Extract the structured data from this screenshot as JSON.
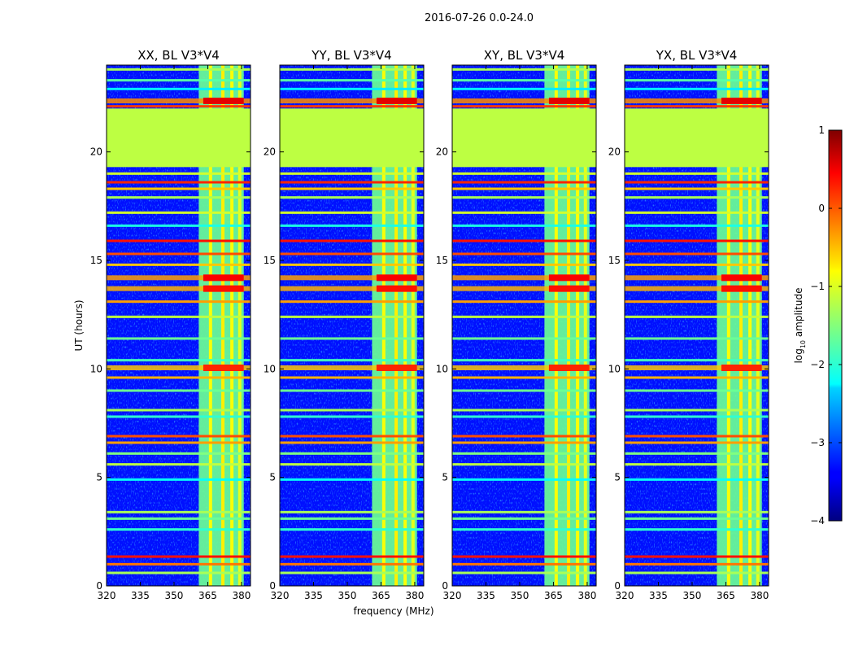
{
  "chart_data": {
    "type": "heatmap",
    "suptitle": "2016-07-26 0.0-24.0",
    "xlabel": "frequency (MHz)",
    "ylabel": "UT (hours)",
    "xlim": [
      320,
      384
    ],
    "ylim": [
      0,
      24
    ],
    "xticks": [
      320,
      335,
      350,
      365,
      380
    ],
    "yticks": [
      0,
      5,
      10,
      15,
      20
    ],
    "colorbar": {
      "label": "log10 amplitude",
      "label_main": "log",
      "label_sub": "10",
      "label_rest": " amplitude",
      "range": [
        -4,
        1
      ],
      "ticks": [
        1,
        0,
        -1,
        -2,
        -3,
        -4
      ],
      "tick_labels": [
        "1",
        "0",
        "−1",
        "−2",
        "−3",
        "−4"
      ],
      "colormap": "jet"
    },
    "panels": [
      {
        "title": "XX, BL V3*V4",
        "rfi_band_mhz": [
          361,
          381
        ]
      },
      {
        "title": "YY, BL V3*V4",
        "rfi_band_mhz": [
          361,
          381
        ]
      },
      {
        "title": "XY, BL V3*V4",
        "rfi_band_mhz": [
          361,
          381
        ]
      },
      {
        "title": "YX, BL V3*V4",
        "rfi_band_mhz": [
          361,
          381
        ]
      }
    ],
    "flagged_block_hours": [
      19.3,
      22.0
    ],
    "background_log_amplitude": -3.3,
    "flagged_log_amplitude": -1.2,
    "rfi_log_amplitude": -1.6,
    "strong_rows": [
      {
        "ut": 22.35,
        "value": 0.5,
        "band": true
      },
      {
        "ut": 14.2,
        "value": 0.4,
        "band": true
      },
      {
        "ut": 13.7,
        "value": 0.3,
        "band": true
      },
      {
        "ut": 10.05,
        "value": 0.2,
        "band": true
      }
    ],
    "horizontal_rows": [
      {
        "ut": 23.8,
        "value": -1.3
      },
      {
        "ut": 23.3,
        "value": -1.7
      },
      {
        "ut": 22.9,
        "value": -2.2
      },
      {
        "ut": 22.1,
        "value": 0.1
      },
      {
        "ut": 19.0,
        "value": -1.1
      },
      {
        "ut": 18.6,
        "value": 0.2
      },
      {
        "ut": 18.3,
        "value": -0.6
      },
      {
        "ut": 17.9,
        "value": -1.3
      },
      {
        "ut": 17.2,
        "value": -1.1
      },
      {
        "ut": 16.6,
        "value": -2.0
      },
      {
        "ut": 15.9,
        "value": 0.3
      },
      {
        "ut": 15.3,
        "value": 0.0
      },
      {
        "ut": 14.8,
        "value": -0.6
      },
      {
        "ut": 13.1,
        "value": -0.4
      },
      {
        "ut": 12.4,
        "value": -1.2
      },
      {
        "ut": 11.4,
        "value": -1.6
      },
      {
        "ut": 10.4,
        "value": -1.8
      },
      {
        "ut": 9.6,
        "value": -0.5
      },
      {
        "ut": 9.0,
        "value": -1.6
      },
      {
        "ut": 8.1,
        "value": -1.3
      },
      {
        "ut": 7.8,
        "value": -1.9
      },
      {
        "ut": 6.9,
        "value": 0.0
      },
      {
        "ut": 6.6,
        "value": -0.4
      },
      {
        "ut": 6.1,
        "value": -1.5
      },
      {
        "ut": 5.6,
        "value": -1.2
      },
      {
        "ut": 4.9,
        "value": -2.1
      },
      {
        "ut": 3.4,
        "value": -1.3
      },
      {
        "ut": 3.1,
        "value": -1.6
      },
      {
        "ut": 2.6,
        "value": -1.9
      },
      {
        "ut": 1.35,
        "value": 0.3
      },
      {
        "ut": 1.0,
        "value": -0.2
      },
      {
        "ut": 0.6,
        "value": -1.3
      }
    ]
  }
}
